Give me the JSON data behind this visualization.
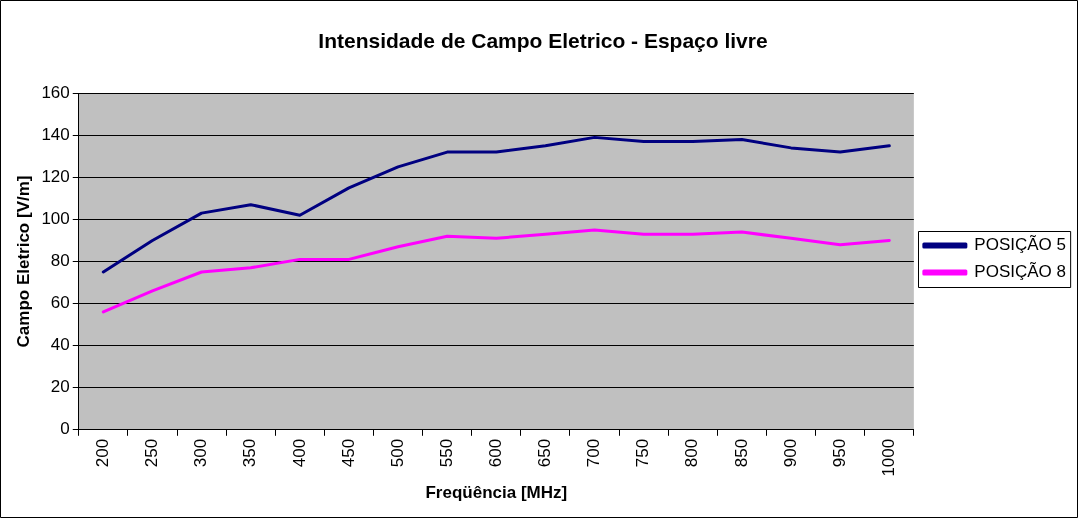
{
  "chart_data": {
    "type": "line",
    "title": "Intensidade de Campo Eletrico - Espaço livre",
    "xlabel": "Freqüência [MHz]",
    "ylabel": "Campo Eletrico [V/m]",
    "categories": [
      "200",
      "250",
      "300",
      "350",
      "400",
      "450",
      "500",
      "550",
      "600",
      "650",
      "700",
      "750",
      "800",
      "850",
      "900",
      "950",
      "1000"
    ],
    "series": [
      {
        "name": "POSIÇÃO 5",
        "color": "#000080",
        "values": [
          75,
          90,
          103,
          107,
          102,
          115,
          125,
          132,
          132,
          135,
          139,
          137,
          137,
          138,
          134,
          132,
          135
        ]
      },
      {
        "name": "POSIÇÃO 8",
        "color": "#ff00ff",
        "values": [
          56,
          66,
          75,
          77,
          81,
          81,
          87,
          92,
          91,
          93,
          95,
          93,
          93,
          94,
          91,
          88,
          90
        ]
      }
    ],
    "ylim": [
      0,
      160
    ],
    "yticks": [
      0,
      20,
      40,
      60,
      80,
      100,
      120,
      140,
      160
    ],
    "grid": "y",
    "legend": "right",
    "marker": "none",
    "line_style": "solid"
  }
}
